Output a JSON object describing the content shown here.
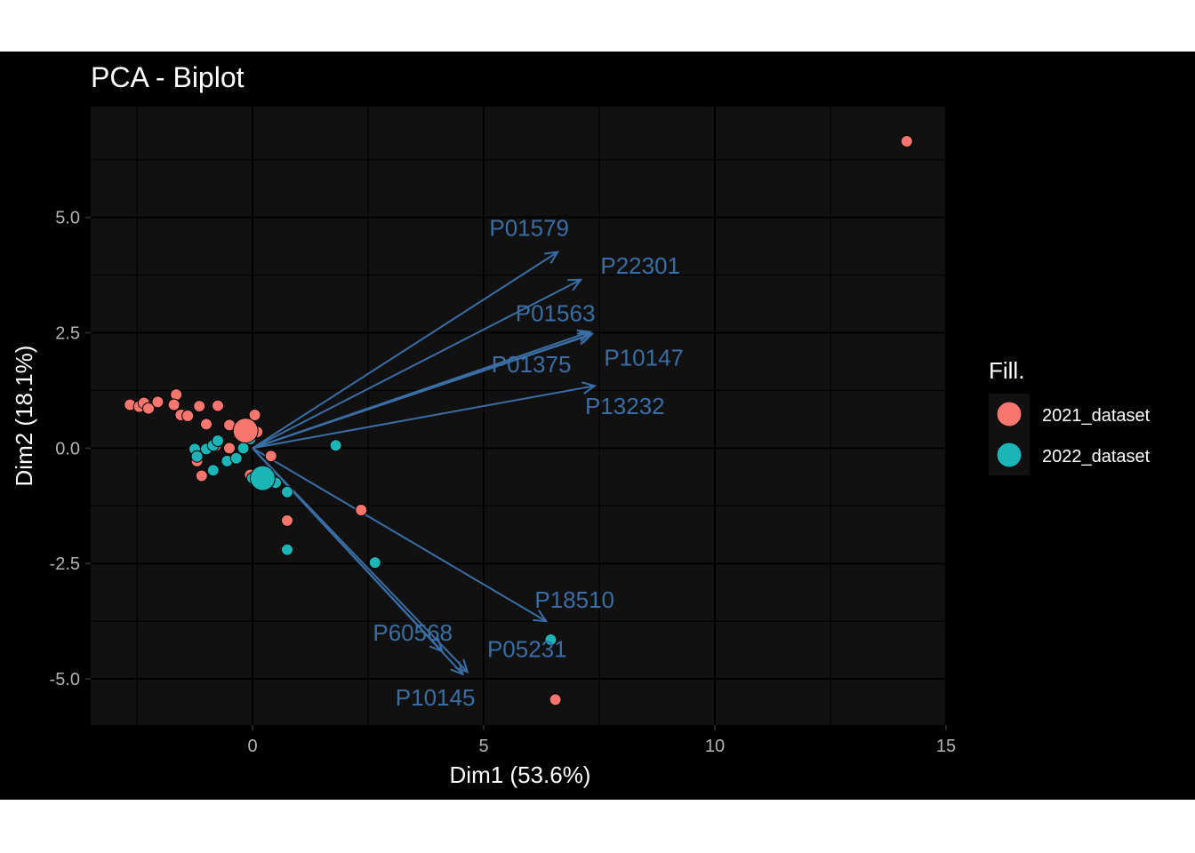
{
  "chart_data": {
    "type": "scatter",
    "title": "PCA - Biplot",
    "xlabel": "Dim1 (53.6%)",
    "ylabel": "Dim2 (18.1%)",
    "xlim": [
      -3.5,
      15
    ],
    "ylim": [
      -6.0,
      7.4
    ],
    "xticks": [
      0,
      5,
      10,
      15
    ],
    "xtick_labels": [
      "0",
      "5",
      "10",
      "15"
    ],
    "yticks": [
      -5.0,
      -2.5,
      0.0,
      2.5,
      5.0
    ],
    "ytick_labels": [
      "-5.0",
      "-2.5",
      "0.0",
      "2.5",
      "5.0"
    ],
    "grid": true,
    "background": "#111111",
    "grid_color": "#000000",
    "legend": {
      "title": "Fill.",
      "position": "right",
      "entries": [
        {
          "label": "2021_dataset",
          "color": "#f8766d"
        },
        {
          "label": "2022_dataset",
          "color": "#1bb5b8"
        }
      ]
    },
    "series": [
      {
        "name": "2021_dataset",
        "color": "#f8766d",
        "points": [
          [
            -2.65,
            0.94
          ],
          [
            -2.45,
            0.9
          ],
          [
            -2.35,
            0.98
          ],
          [
            -2.25,
            0.86
          ],
          [
            -2.05,
            1.0
          ],
          [
            -1.65,
            1.16
          ],
          [
            -1.7,
            0.94
          ],
          [
            -1.55,
            0.72
          ],
          [
            -1.4,
            0.7
          ],
          [
            -1.15,
            0.91
          ],
          [
            -1.0,
            0.52
          ],
          [
            -0.75,
            0.92
          ],
          [
            -0.5,
            0.5
          ],
          [
            0.05,
            0.72
          ],
          [
            0.1,
            0.35
          ],
          [
            -0.3,
            0.3
          ],
          [
            -0.8,
            0.05
          ],
          [
            -0.5,
            0.0
          ],
          [
            -1.2,
            -0.28
          ],
          [
            -1.1,
            -0.6
          ],
          [
            -0.05,
            -0.58
          ],
          [
            0.4,
            -0.17
          ],
          [
            0.75,
            -1.57
          ],
          [
            2.35,
            -1.34
          ],
          [
            6.55,
            -5.45
          ],
          [
            14.15,
            6.65
          ]
        ],
        "centroid": [
          -0.15,
          0.38
        ]
      },
      {
        "name": "2022_dataset",
        "color": "#1bb5b8",
        "points": [
          [
            -1.25,
            -0.02
          ],
          [
            -1.2,
            -0.18
          ],
          [
            -1.0,
            -0.02
          ],
          [
            -0.85,
            0.06
          ],
          [
            -0.75,
            0.16
          ],
          [
            -0.55,
            -0.28
          ],
          [
            -0.35,
            -0.22
          ],
          [
            -0.2,
            0.0
          ],
          [
            -0.05,
            0.2
          ],
          [
            -0.85,
            -0.48
          ],
          [
            0.0,
            -0.65
          ],
          [
            0.5,
            -0.75
          ],
          [
            0.75,
            -0.95
          ],
          [
            0.75,
            -2.2
          ],
          [
            1.8,
            0.06
          ],
          [
            2.65,
            -2.48
          ],
          [
            6.45,
            -4.15
          ]
        ],
        "centroid": [
          0.22,
          -0.65
        ]
      }
    ],
    "variables": [
      {
        "name": "P01579",
        "x": 6.6,
        "y": 4.25
      },
      {
        "name": "P22301",
        "x": 7.1,
        "y": 3.65
      },
      {
        "name": "P01563",
        "x": 7.3,
        "y": 2.52
      },
      {
        "name": "P01375",
        "x": 7.3,
        "y": 2.45
      },
      {
        "name": "P10147",
        "x": 7.35,
        "y": 2.48
      },
      {
        "name": "P13232",
        "x": 7.4,
        "y": 1.35
      },
      {
        "name": "P18510",
        "x": 6.35,
        "y": -3.75
      },
      {
        "name": "P60568",
        "x": 4.1,
        "y": -4.4
      },
      {
        "name": "P05231",
        "x": 4.65,
        "y": -4.85
      },
      {
        "name": "P10145",
        "x": 4.55,
        "y": -4.9
      }
    ]
  }
}
